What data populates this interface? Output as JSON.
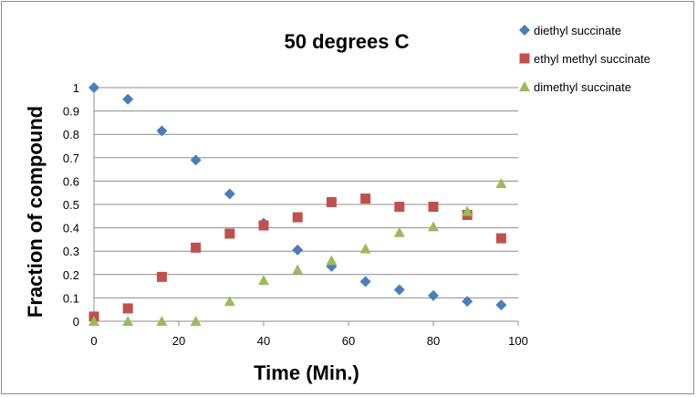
{
  "chart_data": {
    "type": "scatter",
    "title": "50 degrees C",
    "xlabel": "Time (Min.)",
    "ylabel": "Fraction of compound",
    "xlim": [
      0,
      100
    ],
    "ylim": [
      0,
      1
    ],
    "xticks": [
      0,
      20,
      40,
      60,
      80,
      100
    ],
    "yticks": [
      0,
      0.1,
      0.2,
      0.3,
      0.4,
      0.5,
      0.6,
      0.7,
      0.8,
      0.9,
      1
    ],
    "grid": "horizontal",
    "legend_position": "top-right",
    "series": [
      {
        "name": "diethyl succinate",
        "marker": "diamond",
        "color": "#4a7ebb",
        "x": [
          0,
          8,
          16,
          24,
          32,
          40,
          48,
          56,
          64,
          72,
          80,
          88,
          96
        ],
        "y": [
          1.0,
          0.95,
          0.815,
          0.69,
          0.545,
          0.42,
          0.305,
          0.235,
          0.17,
          0.135,
          0.11,
          0.085,
          0.07
        ]
      },
      {
        "name": "ethyl methyl succinate",
        "marker": "square",
        "color": "#c0504d",
        "x": [
          0,
          8,
          16,
          24,
          32,
          40,
          48,
          56,
          64,
          72,
          80,
          88,
          96
        ],
        "y": [
          0.02,
          0.055,
          0.19,
          0.315,
          0.375,
          0.41,
          0.445,
          0.51,
          0.525,
          0.49,
          0.49,
          0.455,
          0.355
        ]
      },
      {
        "name": "dimethyl succinate",
        "marker": "triangle",
        "color": "#9bbb59",
        "x": [
          0,
          8,
          16,
          24,
          32,
          40,
          48,
          56,
          64,
          72,
          80,
          88,
          96
        ],
        "y": [
          0.0,
          0.0,
          0.0,
          0.0,
          0.085,
          0.175,
          0.22,
          0.26,
          0.31,
          0.38,
          0.405,
          0.47,
          0.59
        ]
      }
    ]
  }
}
